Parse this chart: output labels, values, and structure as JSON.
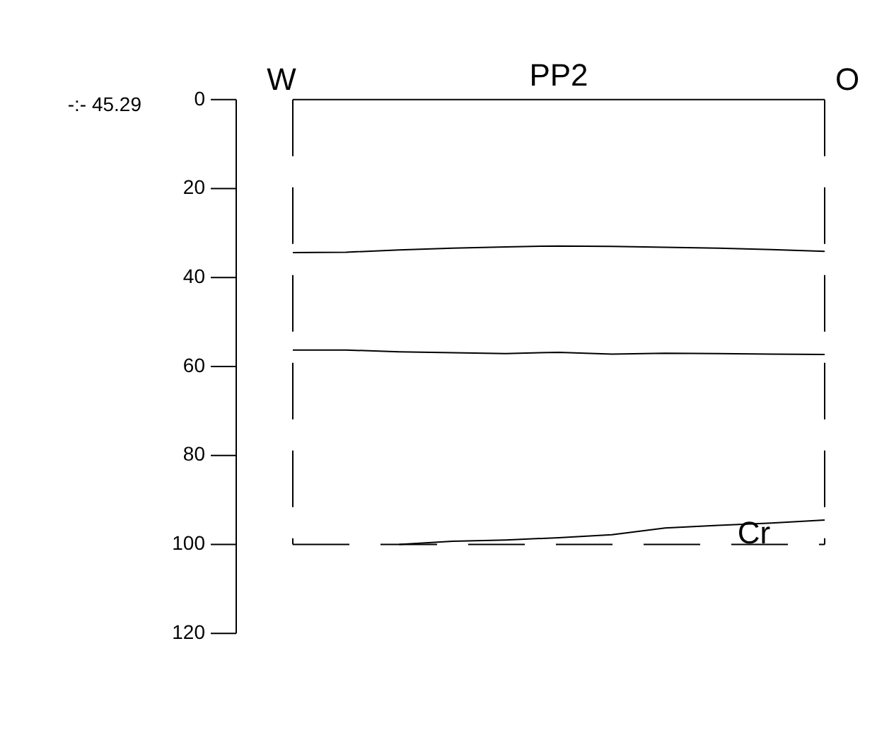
{
  "chart_data": {
    "type": "line",
    "title": "PP2",
    "categories": [
      null,
      null,
      null,
      null,
      null,
      null,
      null,
      null,
      null,
      null,
      null
    ],
    "ylim": [
      120,
      0
    ],
    "yticks": [
      0,
      20,
      40,
      60,
      80,
      100,
      120
    ],
    "tick_labels": "y",
    "legend": false,
    "marker": "none",
    "line_style": "solid",
    "series": [
      {
        "color": "#000000",
        "values": [
          34.4,
          34.3,
          33.8,
          33.4,
          33.1,
          32.9,
          33.0,
          33.2,
          33.4,
          33.7,
          34.1
        ]
      },
      {
        "color": "#000000",
        "values": [
          56.3,
          56.3,
          56.7,
          56.9,
          57.1,
          56.8,
          57.2,
          57.0,
          57.1,
          57.2,
          57.3
        ]
      },
      {
        "color": "#000000",
        "values": [
          null,
          null,
          100,
          99.3,
          99.0,
          98.5,
          97.8,
          96.3,
          95.7,
          95.2,
          94.5
        ]
      }
    ],
    "ref_lines": [
      {
        "axis": "y",
        "value": 0,
        "color": "#000000",
        "line_style": "solid"
      },
      {
        "axis": "y",
        "value": 100,
        "color": "#000000",
        "line_style": "dashed"
      }
    ],
    "annotations": [
      "-:- 45.29",
      "W",
      "O",
      "Cr"
    ]
  }
}
